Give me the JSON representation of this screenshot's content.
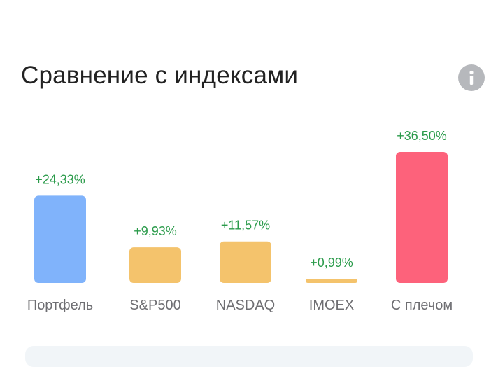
{
  "header": {
    "title": "Сравнение с индексами",
    "info_icon": "info-icon"
  },
  "chart_data": {
    "type": "bar",
    "title": "Сравнение с индексами",
    "categories": [
      "Портфель",
      "S&P500",
      "NASDAQ",
      "IMOEX",
      "С плечом"
    ],
    "values": [
      24.33,
      9.93,
      11.57,
      0.99,
      36.5
    ],
    "value_labels": [
      "+24,33%",
      "+9,93%",
      "+11,57%",
      "+0,99%",
      "+36,50%"
    ],
    "colors": [
      "#80b3fb",
      "#f4c36c",
      "#f4c36c",
      "#f4c36c",
      "#fd627b"
    ],
    "label_color": "#2b9b4b",
    "category_color": "#6e6e72",
    "xlabel": "",
    "ylabel": "",
    "grid": false,
    "legend": "none"
  }
}
